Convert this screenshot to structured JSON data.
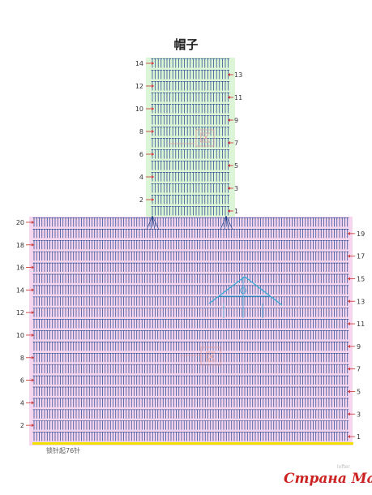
{
  "title": "帽子",
  "top_panel": {
    "rows_left": [
      "14",
      "12",
      "10",
      "8",
      "6",
      "4",
      "2"
    ],
    "rows_right": [
      "13",
      "11",
      "9",
      "7",
      "5",
      "3",
      "1"
    ],
    "fill_color": "#dcf5d6",
    "stitch_color": "#1c3f8a",
    "mark": "区"
  },
  "bottom_panel": {
    "rows_left": [
      "20",
      "18",
      "16",
      "14",
      "12",
      "10",
      "8",
      "6",
      "4",
      "2"
    ],
    "rows_right": [
      "19",
      "17",
      "15",
      "13",
      "11",
      "9",
      "7",
      "5",
      "3",
      "1"
    ],
    "fill_color": "#f6d6ee",
    "stitch_color": "#1c3f8a",
    "chain_color": "#f2e200",
    "start_label": "锁针起76针",
    "mark": "区"
  },
  "cap_figure_color": "#3aa9d6",
  "arrow_color": "#d04040",
  "watermark": "Страна Мам",
  "watermark_small": "lofter"
}
